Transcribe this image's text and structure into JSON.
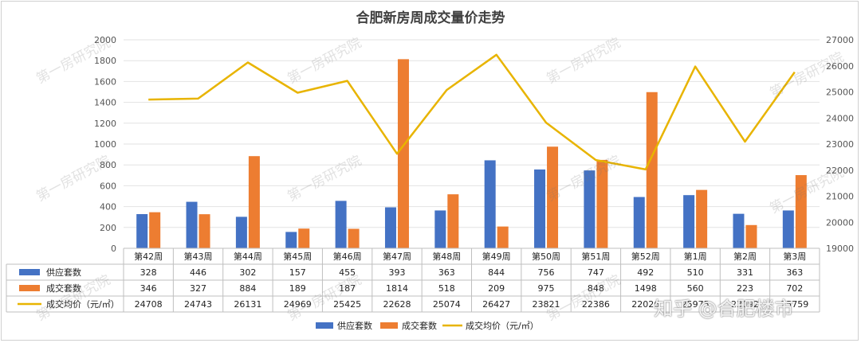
{
  "title": "合肥新房周成交量价走势",
  "watermark_text": "第一房研究院",
  "brand": "知乎 @合肥楼市",
  "legend": {
    "supply": "供应套数",
    "deals": "成交套数",
    "price": "成交均价（元/㎡）"
  },
  "colors": {
    "supply": "#4472C4",
    "deals": "#ED7D31",
    "price": "#E8B400"
  },
  "chart_data": {
    "type": "bar",
    "title": "合肥新房周成交量价走势",
    "categories": [
      "第42周",
      "第43周",
      "第44周",
      "第45周",
      "第46周",
      "第47周",
      "第48周",
      "第49周",
      "第50周",
      "第51周",
      "第52周",
      "第1周",
      "第2周",
      "第3周"
    ],
    "series": [
      {
        "name": "供应套数",
        "type": "bar",
        "axis": "left",
        "values": [
          328,
          446,
          302,
          157,
          455,
          393,
          363,
          844,
          756,
          747,
          492,
          510,
          331,
          363
        ]
      },
      {
        "name": "成交套数",
        "type": "bar",
        "axis": "left",
        "values": [
          346,
          327,
          884,
          189,
          187,
          1814,
          518,
          209,
          975,
          848,
          1498,
          560,
          223,
          702
        ]
      },
      {
        "name": "成交均价（元/㎡）",
        "type": "line",
        "axis": "right",
        "values": [
          24708,
          24743,
          26131,
          24969,
          25425,
          22628,
          25074,
          26427,
          23821,
          22386,
          22026,
          25975,
          23092,
          25759
        ]
      }
    ],
    "y_left": {
      "min": 0,
      "max": 2000,
      "step": 200,
      "ticks": [
        "0",
        "200",
        "400",
        "600",
        "800",
        "1000",
        "1200",
        "1400",
        "1600",
        "1800",
        "2000"
      ]
    },
    "y_right": {
      "min": 19000,
      "max": 27000,
      "step": 1000,
      "ticks": [
        "19000",
        "20000",
        "21000",
        "22000",
        "23000",
        "24000",
        "25000",
        "26000",
        "27000"
      ]
    },
    "grid": true,
    "legend_position": "bottom",
    "data_table": true
  }
}
